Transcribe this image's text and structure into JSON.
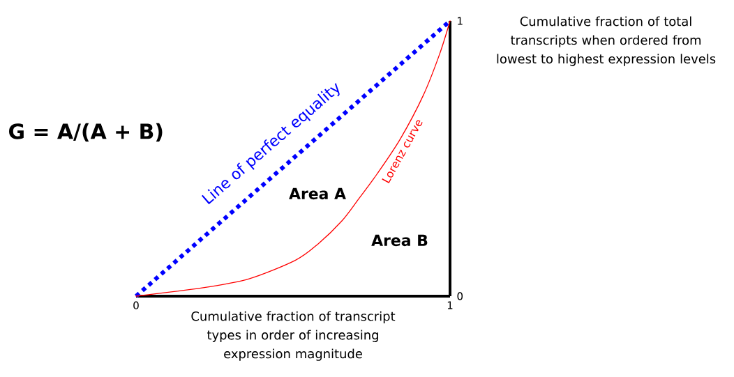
{
  "chart_data": {
    "type": "line",
    "xlabel": "Cumulative fraction of transcript types in order of increasing expression magnitude",
    "ylabel": "Cumulative fraction of total transcripts when ordered from lowest to highest expression levels",
    "xlim": [
      0,
      1
    ],
    "ylim": [
      0,
      1
    ],
    "xticks": [
      0,
      1
    ],
    "yticks": [
      0,
      1
    ],
    "legend": false,
    "marker": "none",
    "annotations": [
      "G = A/(A + B)",
      "Area A",
      "Area B"
    ],
    "series": [
      {
        "name": "Line of perfect equality",
        "color": "#0000ff",
        "line_style": "dotted",
        "x": [
          0,
          1
        ],
        "values": [
          0,
          1
        ]
      },
      {
        "name": "Lorenz curve",
        "color": "#ff0000",
        "line_style": "solid",
        "x": [
          0,
          0.21,
          0.36,
          0.507,
          0.58,
          0.656,
          0.707,
          0.767,
          0.841,
          0.915,
          0.967,
          1
        ],
        "values": [
          0,
          0.03,
          0.063,
          0.13,
          0.19,
          0.274,
          0.35,
          0.443,
          0.57,
          0.73,
          0.88,
          1
        ]
      }
    ]
  }
}
